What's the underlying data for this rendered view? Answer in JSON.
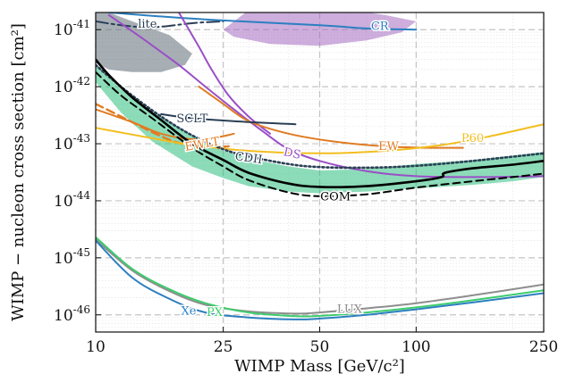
{
  "chart_data": {
    "type": "line",
    "x_scale": "log",
    "y_scale": "log",
    "xlim": [
      10,
      250
    ],
    "ylim": [
      5e-47,
      2e-41
    ],
    "xlabel": "WIMP Mass [GeV/c²]",
    "ylabel": "WIMP − nucleon cross section [cm²]",
    "grid": "on",
    "x_ticks": [
      {
        "value": 10,
        "label": "10"
      },
      {
        "value": 25,
        "label": "25"
      },
      {
        "value": 50,
        "label": "50"
      },
      {
        "value": 100,
        "label": "100"
      },
      {
        "value": 250,
        "label": "250"
      }
    ],
    "y_ticks": [
      {
        "value": 1e-46,
        "exp": "-46"
      },
      {
        "value": 1e-45,
        "exp": "-45"
      },
      {
        "value": 1e-44,
        "exp": "-44"
      },
      {
        "value": 1e-43,
        "exp": "-43"
      },
      {
        "value": 1e-42,
        "exp": "-42"
      },
      {
        "value": 1e-41,
        "exp": "-41"
      }
    ],
    "tick_base": "10",
    "regions": [
      {
        "name": "lite-region",
        "color": "#5f6b77",
        "opacity": 0.55,
        "points": [
          [
            10,
            2.2e-41
          ],
          [
            11,
            2e-41
          ],
          [
            13,
            1.4e-41
          ],
          [
            17,
            8e-42
          ],
          [
            20,
            3.8e-42
          ],
          [
            19,
            2.4e-42
          ],
          [
            16,
            1.8e-42
          ],
          [
            13,
            1.8e-42
          ],
          [
            11,
            2e-42
          ],
          [
            10,
            2.6e-42
          ]
        ]
      },
      {
        "name": "cr-region",
        "color": "#a46bc1",
        "opacity": 0.55,
        "points": [
          [
            25,
            1e-41
          ],
          [
            30,
            2.2e-41
          ],
          [
            55,
            2.5e-41
          ],
          [
            80,
            1.8e-41
          ],
          [
            100,
            1.4e-41
          ],
          [
            90,
            9e-42
          ],
          [
            70,
            6.5e-42
          ],
          [
            50,
            5.2e-42
          ],
          [
            35,
            5.6e-42
          ],
          [
            27,
            7.5e-42
          ]
        ]
      },
      {
        "name": "sensitivity-band",
        "color": "#2fbf7f",
        "opacity": 0.55,
        "points": [
          [
            10,
            2.5e-42
          ],
          [
            12,
            9e-43
          ],
          [
            15,
            3.6e-43
          ],
          [
            20,
            1.4e-43
          ],
          [
            25,
            7.5e-44
          ],
          [
            30,
            5.5e-44
          ],
          [
            40,
            4e-44
          ],
          [
            50,
            3.4e-44
          ],
          [
            70,
            3.6e-44
          ],
          [
            100,
            4.4e-44
          ],
          [
            150,
            5.2e-44
          ],
          [
            200,
            6.2e-44
          ],
          [
            250,
            7.2e-44
          ],
          [
            250,
            2.6e-44
          ],
          [
            200,
            2.2e-44
          ],
          [
            150,
            1.9e-44
          ],
          [
            100,
            1.65e-44
          ],
          [
            70,
            1.45e-44
          ],
          [
            50,
            1.35e-44
          ],
          [
            40,
            1.45e-44
          ],
          [
            30,
            1.8e-44
          ],
          [
            25,
            2.5e-44
          ],
          [
            20,
            4e-44
          ],
          [
            15,
            1.1e-43
          ],
          [
            12,
            3.5e-43
          ],
          [
            10,
            1.2e-42
          ]
        ]
      }
    ],
    "series": [
      {
        "name": "lite",
        "color": "#2a3f55",
        "dash": "14,4,3,4",
        "width": 2,
        "points": [
          [
            10,
            1.4e-41
          ],
          [
            12,
            1.2e-41
          ],
          [
            15,
            1.1e-41
          ],
          [
            20,
            1.3e-41
          ],
          [
            25,
            1.4e-41
          ]
        ]
      },
      {
        "name": "CR",
        "color": "#2c7fc0",
        "dash": "",
        "width": 2,
        "points": [
          [
            11,
            2e-41
          ],
          [
            15,
            1.75e-41
          ],
          [
            25,
            1.45e-41
          ],
          [
            50,
            1.2e-41
          ],
          [
            70,
            1.05e-41
          ],
          [
            100,
            1e-41
          ]
        ]
      },
      {
        "name": "DS",
        "color": "#9a4fc6",
        "dash": "",
        "width": 2,
        "points": [
          [
            11,
            1.8e-41
          ],
          [
            14,
            7e-42
          ],
          [
            18,
            2.5e-42
          ],
          [
            22,
            1e-42
          ],
          [
            27,
            4e-43
          ],
          [
            33,
            1.7e-43
          ],
          [
            40,
            8e-44
          ],
          [
            50,
            5e-44
          ],
          [
            70,
            3.3e-44
          ],
          [
            100,
            2.7e-44
          ],
          [
            150,
            2.6e-44
          ],
          [
            250,
            2.7e-44
          ]
        ]
      },
      {
        "name": "DS-b",
        "color": "#9a4fc6",
        "dash": "",
        "width": 2,
        "points": [
          [
            18,
            2.2e-41
          ],
          [
            21,
            5e-42
          ],
          [
            23,
            2e-42
          ],
          [
            26,
            7e-43
          ],
          [
            30,
            3e-43
          ],
          [
            35,
            1.5e-43
          ]
        ]
      },
      {
        "name": "EW",
        "color": "#e07b22",
        "dash": "",
        "width": 2,
        "points": [
          [
            21,
            1e-42
          ],
          [
            25,
            5e-43
          ],
          [
            30,
            2.5e-43
          ],
          [
            40,
            1.5e-43
          ],
          [
            55,
            1.1e-43
          ],
          [
            80,
            9e-44
          ],
          [
            110,
            8.5e-44
          ],
          [
            140,
            8.5e-44
          ]
        ]
      },
      {
        "name": "EW-2",
        "color": "#e07b22",
        "dash": "",
        "width": 2,
        "points": [
          [
            10,
            4e-43
          ],
          [
            13,
            2.4e-43
          ],
          [
            16,
            1.5e-43
          ],
          [
            20,
            1.2e-43
          ],
          [
            24,
            1.3e-43
          ],
          [
            27,
            1.5e-43
          ]
        ]
      },
      {
        "name": "EWLT",
        "color": "#e07b22",
        "dash": "9,5",
        "width": 2.4,
        "points": [
          [
            10,
            5e-43
          ],
          [
            12,
            3e-43
          ],
          [
            15,
            1.6e-43
          ],
          [
            18,
            1.05e-43
          ],
          [
            22,
            8.8e-44
          ],
          [
            26,
            9e-44
          ]
        ]
      },
      {
        "name": "P60",
        "color": "#f2be1f",
        "dash": "",
        "width": 2,
        "points": [
          [
            10,
            1.9e-43
          ],
          [
            15,
            1.25e-43
          ],
          [
            20,
            9.5e-44
          ],
          [
            30,
            7.5e-44
          ],
          [
            50,
            6.8e-44
          ],
          [
            80,
            7.5e-44
          ],
          [
            120,
            9.5e-44
          ],
          [
            170,
            1.35e-43
          ],
          [
            250,
            2.2e-43
          ]
        ]
      },
      {
        "name": "SCLT",
        "color": "#2a3f55",
        "dash": "",
        "width": 2,
        "points": [
          [
            16,
            3.3e-43
          ],
          [
            20,
            2.8e-43
          ],
          [
            30,
            2.4e-43
          ],
          [
            42,
            2.2e-43
          ]
        ]
      },
      {
        "name": "CDII",
        "color": "#2a3f55",
        "dash": "2,3",
        "width": 2.6,
        "points": [
          [
            10,
            2.4e-42
          ],
          [
            11,
            1.5e-42
          ],
          [
            13,
            7e-43
          ],
          [
            16,
            3e-43
          ],
          [
            20,
            1.4e-43
          ],
          [
            25,
            8e-44
          ],
          [
            30,
            6e-44
          ],
          [
            40,
            4.4e-44
          ],
          [
            50,
            3.9e-44
          ],
          [
            70,
            3.8e-44
          ],
          [
            100,
            4.1e-44
          ],
          [
            150,
            5e-44
          ],
          [
            250,
            6.8e-44
          ]
        ]
      },
      {
        "name": "COM",
        "color": "#000000",
        "dash": "",
        "width": 2.6,
        "points": [
          [
            10,
            3e-42
          ],
          [
            11,
            1.6e-42
          ],
          [
            13,
            6.5e-43
          ],
          [
            16,
            2.6e-43
          ],
          [
            20,
            1e-43
          ],
          [
            25,
            5.2e-44
          ],
          [
            30,
            3.1e-44
          ],
          [
            40,
            2e-44
          ],
          [
            50,
            1.75e-44
          ],
          [
            70,
            1.8e-44
          ],
          [
            100,
            2.2e-44
          ],
          [
            120,
            2.6e-44
          ],
          [
            123,
            3.1e-44
          ],
          [
            150,
            3.7e-44
          ],
          [
            200,
            4.3e-44
          ],
          [
            250,
            5e-44
          ]
        ]
      },
      {
        "name": "COM-dashed",
        "color": "#000000",
        "dash": "8,5",
        "width": 2,
        "points": [
          [
            10,
            1.8e-42
          ],
          [
            12,
            7e-43
          ],
          [
            15,
            2.8e-43
          ],
          [
            20,
            8.5e-44
          ],
          [
            25,
            4e-44
          ],
          [
            30,
            2.3e-44
          ],
          [
            40,
            1.4e-44
          ],
          [
            50,
            1.2e-44
          ],
          [
            70,
            1.3e-44
          ],
          [
            100,
            1.7e-44
          ],
          [
            150,
            2.2e-44
          ],
          [
            200,
            2.6e-44
          ],
          [
            250,
            3e-44
          ]
        ]
      },
      {
        "name": "LUX",
        "color": "#8e8e8e",
        "dash": "",
        "width": 2,
        "points": [
          [
            10,
            2.1e-45
          ],
          [
            13,
            6e-46
          ],
          [
            17,
            2.6e-46
          ],
          [
            22,
            1.5e-46
          ],
          [
            30,
            1.15e-46
          ],
          [
            42,
            1.05e-46
          ],
          [
            50,
            1.1e-46
          ],
          [
            70,
            1.3e-46
          ],
          [
            100,
            1.6e-46
          ],
          [
            150,
            2.2e-46
          ],
          [
            250,
            3.4e-46
          ]
        ]
      },
      {
        "name": "PX",
        "color": "#3dcc6d",
        "dash": "",
        "width": 2,
        "points": [
          [
            10,
            2.3e-45
          ],
          [
            13,
            6.4e-46
          ],
          [
            17,
            2.8e-46
          ],
          [
            22,
            1.6e-46
          ],
          [
            30,
            1.1e-46
          ],
          [
            42,
            9.5e-47
          ],
          [
            50,
            9.6e-47
          ],
          [
            70,
            1.1e-46
          ],
          [
            100,
            1.35e-46
          ],
          [
            150,
            1.8e-46
          ],
          [
            250,
            2.7e-46
          ]
        ]
      },
      {
        "name": "Xe",
        "color": "#2c7fc0",
        "dash": "",
        "width": 2,
        "points": [
          [
            10,
            2e-45
          ],
          [
            13,
            4.5e-46
          ],
          [
            17,
            1.9e-46
          ],
          [
            22,
            1.1e-46
          ],
          [
            30,
            9e-47
          ],
          [
            42,
            8.3e-47
          ],
          [
            50,
            8.6e-47
          ],
          [
            70,
            1e-46
          ],
          [
            100,
            1.25e-46
          ],
          [
            150,
            1.65e-46
          ],
          [
            250,
            2.4e-46
          ]
        ]
      }
    ],
    "annotations": [
      {
        "text": "lite",
        "x": 14.5,
        "y": 1.23e-41,
        "color": "#2a3f55",
        "rotate": 0
      },
      {
        "text": "CR",
        "x": 77,
        "y": 1.12e-41,
        "color": "#2c7fc0",
        "rotate": 0
      },
      {
        "text": "SCLT",
        "x": 20,
        "y": 2.7e-43,
        "color": "#2a3f55",
        "rotate": 0
      },
      {
        "text": "EWLT",
        "x": 21.5,
        "y": 9.6e-44,
        "color": "#e07b22",
        "rotate": -10
      },
      {
        "text": "CDII",
        "x": 30,
        "y": 5.5e-44,
        "color": "#2a3f55",
        "rotate": 8
      },
      {
        "text": "DS",
        "x": 41,
        "y": 6.6e-44,
        "color": "#9a4fc6",
        "rotate": 12
      },
      {
        "text": "EW",
        "x": 82,
        "y": 8.9e-44,
        "color": "#e07b22",
        "rotate": 0
      },
      {
        "text": "P60",
        "x": 150,
        "y": 1.22e-43,
        "color": "#f2be1f",
        "rotate": 0
      },
      {
        "text": "COM",
        "x": 56,
        "y": 1.15e-44,
        "color": "#000000",
        "rotate": 0
      },
      {
        "text": "LUX",
        "x": 62,
        "y": 1.24e-46,
        "color": "#8e8e8e",
        "rotate": 0
      },
      {
        "text": "PX",
        "x": 23.5,
        "y": 1.08e-46,
        "color": "#3dcc6d",
        "rotate": 0
      },
      {
        "text": "Xe",
        "x": 19.5,
        "y": 1.14e-46,
        "color": "#2c7fc0",
        "rotate": 0
      }
    ]
  }
}
